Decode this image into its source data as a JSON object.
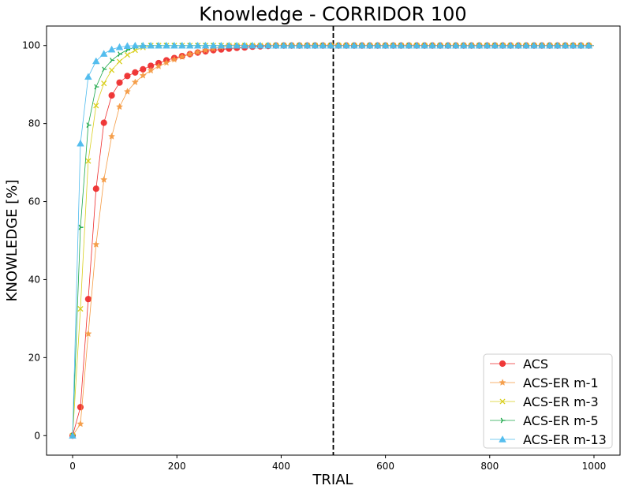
{
  "chart_data": {
    "type": "line",
    "title": "Knowledge - CORRIDOR 100",
    "xlabel": "TRIAL",
    "ylabel": "KNOWLEDGE [%]",
    "xlim": [
      -50,
      1050
    ],
    "ylim": [
      -5,
      105
    ],
    "xticks": [
      0,
      200,
      400,
      600,
      800,
      1000
    ],
    "yticks": [
      0,
      20,
      40,
      60,
      80,
      100
    ],
    "xtick_labels": [
      "0",
      "200",
      "400",
      "600",
      "800",
      "1000"
    ],
    "ytick_labels": [
      "0",
      "20",
      "40",
      "60",
      "80",
      "100"
    ],
    "vline": {
      "x": 500,
      "style": "dashed",
      "color": "#000000"
    },
    "legend_position": "bottom-right",
    "marker_step": 15,
    "x_max": 1000,
    "series": [
      {
        "name": "ACS",
        "color": "#ee2b2b",
        "marker": "circle",
        "x": [
          0,
          15,
          30,
          45,
          60,
          75,
          90,
          105,
          120,
          135,
          150,
          165,
          180,
          195,
          210,
          225,
          240,
          255,
          270,
          285,
          300,
          315,
          330,
          345,
          360,
          375,
          390
        ],
        "values": [
          0,
          7.3,
          35.0,
          63.3,
          80.2,
          87.2,
          90.5,
          92.2,
          93.1,
          93.9,
          94.8,
          95.5,
          96.2,
          96.8,
          97.3,
          97.8,
          98.2,
          98.5,
          98.8,
          99.0,
          99.2,
          99.4,
          99.5,
          99.7,
          99.8,
          99.9,
          100
        ]
      },
      {
        "name": "ACS-ER m-1",
        "color": "#f59a42",
        "marker": "star",
        "x": [
          0,
          15,
          30,
          45,
          60,
          75,
          90,
          105,
          120,
          135,
          150,
          165,
          180,
          195,
          210,
          225,
          240,
          255,
          270,
          285,
          300
        ],
        "values": [
          0,
          3.0,
          26.1,
          49.0,
          65.6,
          76.7,
          84.3,
          88.2,
          90.6,
          92.3,
          93.6,
          94.7,
          95.6,
          96.4,
          97.1,
          97.8,
          98.3,
          98.8,
          99.2,
          99.6,
          100
        ]
      },
      {
        "name": "ACS-ER m-3",
        "color": "#d9cf1e",
        "marker": "x",
        "x": [
          0,
          15,
          30,
          45,
          60,
          75,
          90,
          105,
          120,
          135,
          150
        ],
        "values": [
          0,
          32.5,
          70.4,
          84.6,
          90.3,
          93.7,
          95.9,
          97.6,
          98.8,
          99.5,
          100
        ]
      },
      {
        "name": "ACS-ER m-5",
        "color": "#1ca84a",
        "marker": "tri",
        "x": [
          0,
          15,
          30,
          45,
          60,
          75,
          90,
          105,
          120,
          135
        ],
        "values": [
          0,
          53.4,
          79.6,
          89.4,
          93.9,
          96.2,
          97.8,
          98.9,
          99.6,
          100
        ]
      },
      {
        "name": "ACS-ER m-13",
        "color": "#4dbbee",
        "marker": "triangle",
        "x": [
          0,
          15,
          30,
          45,
          60,
          75,
          90,
          105,
          120
        ],
        "values": [
          0,
          74.9,
          92.0,
          96.0,
          97.9,
          99.0,
          99.6,
          99.9,
          100
        ]
      }
    ]
  }
}
